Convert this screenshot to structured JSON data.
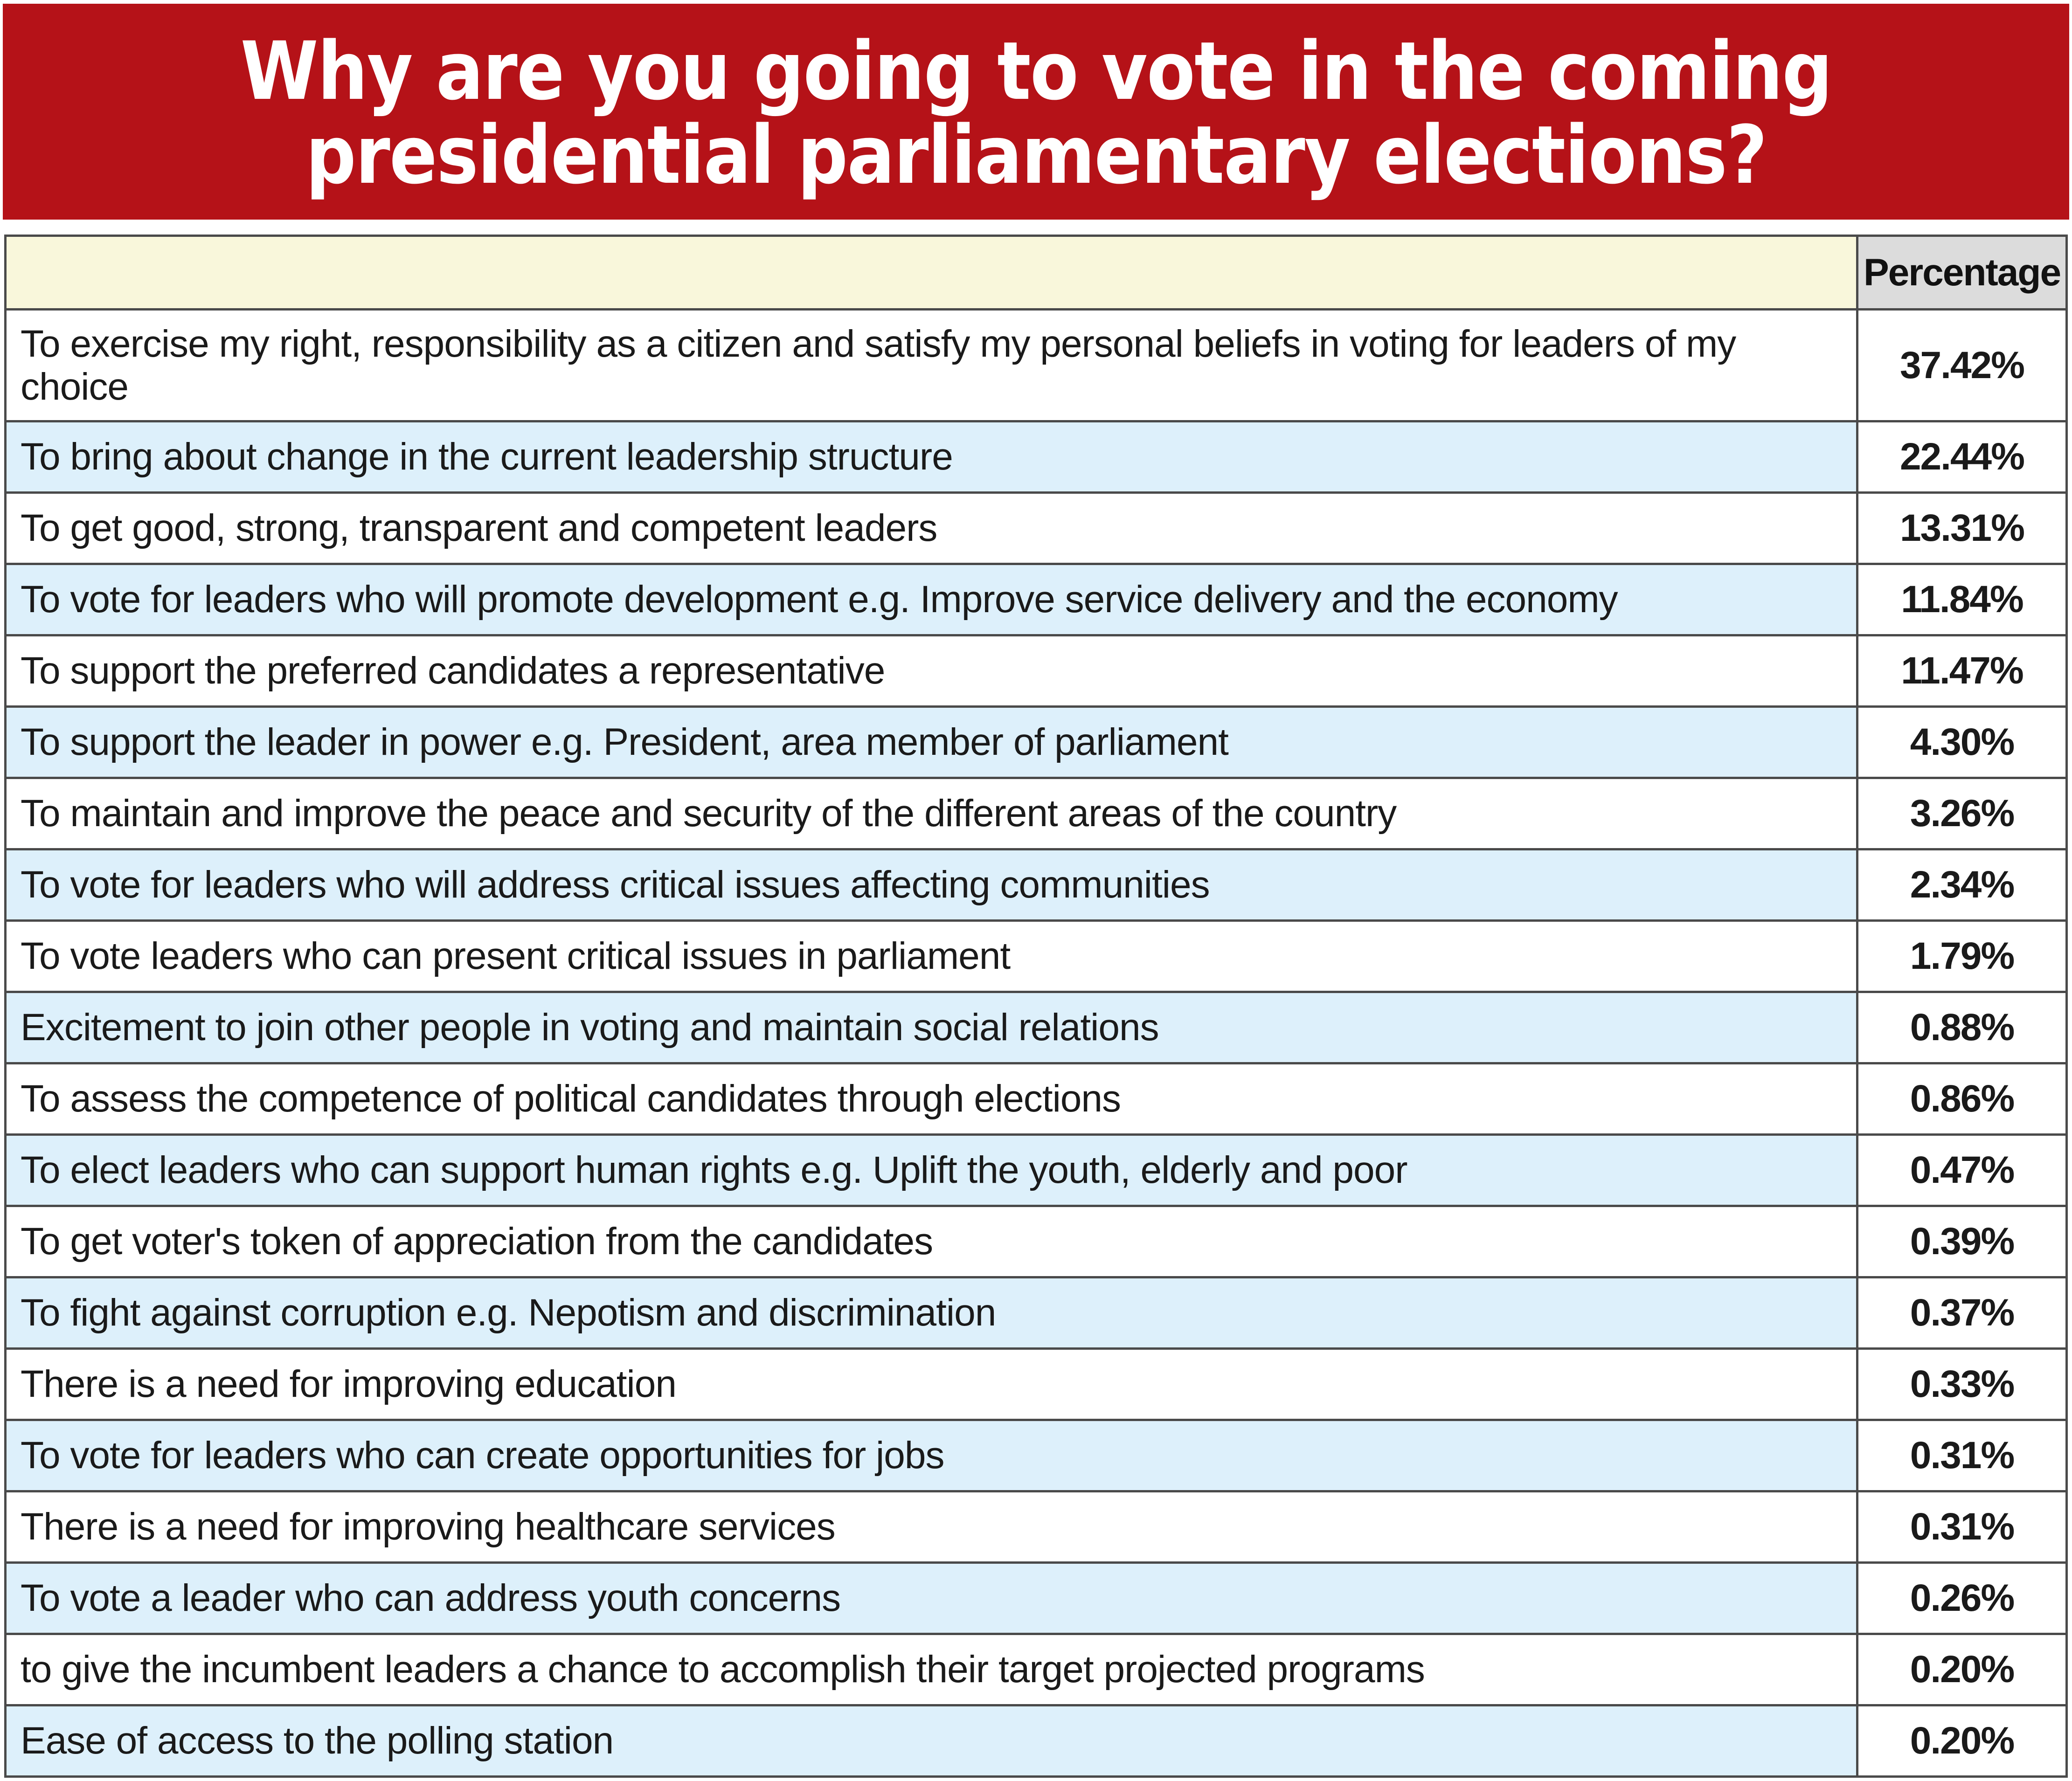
{
  "chart_data": {
    "type": "table",
    "title": "Why are you going to vote in the coming\npresidential parliamentary elections?",
    "column_header": "Percentage",
    "colors": {
      "title_background": "#b51218",
      "title_text": "#ffffff",
      "header_background": "#f9f7db",
      "value_header_background": "#dcdcdc",
      "alt_row_background": "#ddf0fb"
    },
    "rows": [
      {
        "label": "To exercise my right, responsibility as a citizen and satisfy my personal beliefs in voting for leaders of my choice",
        "value": "37.42%"
      },
      {
        "label": "To bring about change in the current leadership structure",
        "value": "22.44%"
      },
      {
        "label": "To get good, strong, transparent and competent leaders",
        "value": "13.31%"
      },
      {
        "label": "To vote for leaders who will promote development e.g. Improve service delivery and the economy",
        "value": "11.84%"
      },
      {
        "label": "To support the preferred candidates a representative",
        "value": "11.47%"
      },
      {
        "label": "To support the leader in power e.g. President, area member of parliament",
        "value": "4.30%"
      },
      {
        "label": "To maintain and improve the peace and security of the different areas of the country",
        "value": "3.26%"
      },
      {
        "label": "To vote for leaders who will address critical issues affecting communities",
        "value": "2.34%"
      },
      {
        "label": "To vote leaders who can present critical issues in parliament",
        "value": "1.79%"
      },
      {
        "label": "Excitement to join other people in voting and maintain social relations",
        "value": "0.88%"
      },
      {
        "label": "To assess the competence of political candidates through elections",
        "value": "0.86%"
      },
      {
        "label": "To elect leaders who can support human rights e.g. Uplift the youth, elderly and poor",
        "value": "0.47%"
      },
      {
        "label": "To get voter's token of appreciation from the candidates",
        "value": "0.39%"
      },
      {
        "label": "To fight against corruption e.g. Nepotism and discrimination",
        "value": "0.37%"
      },
      {
        "label": "There is a need for improving education",
        "value": "0.33%"
      },
      {
        "label": "To vote for leaders who can create opportunities for jobs",
        "value": "0.31%"
      },
      {
        "label": "There is a need for improving healthcare services",
        "value": "0.31%"
      },
      {
        "label": "To vote a leader who can address youth concerns",
        "value": "0.26%"
      },
      {
        "label": "to give the incumbent leaders a chance to accomplish their target projected programs",
        "value": "0.20%"
      },
      {
        "label": "Ease of access to the polling station",
        "value": "0.20%"
      }
    ]
  }
}
